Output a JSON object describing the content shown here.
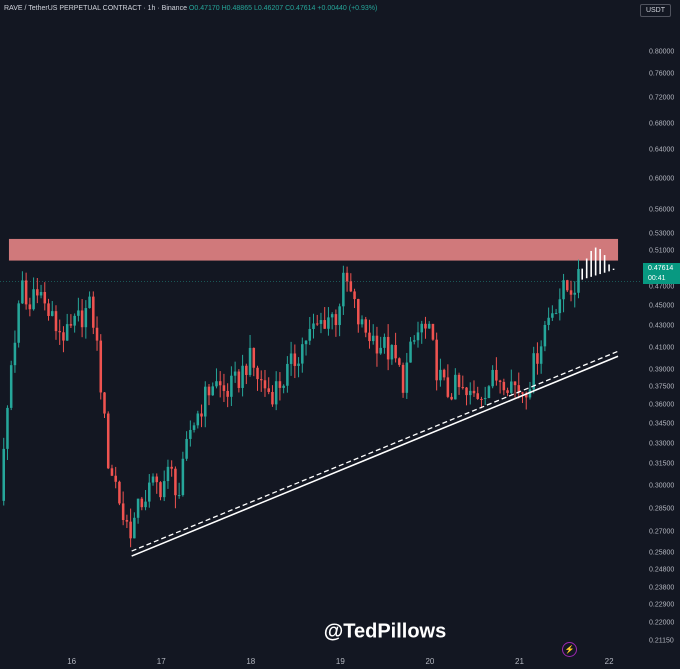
{
  "header": {
    "symbol": "RAVE / TetherUS PERPETUAL CONTRACT · 1h · Binance",
    "open": "O0.47170",
    "high": "H0.48865",
    "low": "L0.46207",
    "close": "C0.47614",
    "change": "+0.00440 (+0.93%)"
  },
  "currency_button": "USDT",
  "current_price": {
    "price": "0.47614",
    "countdown": "00:41"
  },
  "watermark": "@TedPillows",
  "colors": {
    "up": "#26a69a",
    "down": "#ef5350",
    "resistance": "#f28b8b",
    "background": "#131722"
  },
  "chart_data": {
    "type": "candlestick",
    "y_scale": "log",
    "ylim": [
      0.208,
      0.84
    ],
    "xlim": [
      15.2,
      22.2
    ],
    "y_ticks": [
      "0.80000",
      "0.76000",
      "0.72000",
      "0.68000",
      "0.64000",
      "0.60000",
      "0.56000",
      "0.53000",
      "0.51000",
      "0.49000",
      "0.47000",
      "0.45000",
      "0.43000",
      "0.41000",
      "0.39000",
      "0.37500",
      "0.36000",
      "0.34500",
      "0.33000",
      "0.31500",
      "0.30000",
      "0.28500",
      "0.27000",
      "0.25800",
      "0.24800",
      "0.23800",
      "0.22900",
      "0.22000",
      "0.21150"
    ],
    "x_ticks": [
      {
        "label": "16",
        "x": 16
      },
      {
        "label": "17",
        "x": 17
      },
      {
        "label": "18",
        "x": 18
      },
      {
        "label": "19",
        "x": 19
      },
      {
        "label": "20",
        "x": 20
      },
      {
        "label": "21",
        "x": 21
      },
      {
        "label": "22",
        "x": 22
      }
    ],
    "resistance_zone": {
      "x": [
        15.3,
        22.1
      ],
      "y": [
        0.499,
        0.524
      ]
    },
    "support_trendline": {
      "from": [
        16.67,
        0.256
      ],
      "to": [
        22.1,
        0.402
      ]
    },
    "projection_bars_count": 9,
    "anchors": [
      [
        15.2,
        0.29
      ],
      [
        15.33,
        0.4
      ],
      [
        15.45,
        0.47
      ],
      [
        15.52,
        0.44
      ],
      [
        15.6,
        0.48
      ],
      [
        15.7,
        0.45
      ],
      [
        15.82,
        0.43
      ],
      [
        15.95,
        0.42
      ],
      [
        16.1,
        0.44
      ],
      [
        16.22,
        0.45
      ],
      [
        16.3,
        0.4
      ],
      [
        16.4,
        0.32
      ],
      [
        16.5,
        0.3
      ],
      [
        16.58,
        0.278
      ],
      [
        16.67,
        0.272
      ],
      [
        16.78,
        0.29
      ],
      [
        16.9,
        0.3
      ],
      [
        17.0,
        0.3
      ],
      [
        17.1,
        0.31
      ],
      [
        17.2,
        0.295
      ],
      [
        17.32,
        0.34
      ],
      [
        17.45,
        0.36
      ],
      [
        17.58,
        0.38
      ],
      [
        17.72,
        0.37
      ],
      [
        17.85,
        0.38
      ],
      [
        17.98,
        0.4
      ],
      [
        18.1,
        0.38
      ],
      [
        18.22,
        0.37
      ],
      [
        18.35,
        0.38
      ],
      [
        18.5,
        0.4
      ],
      [
        18.62,
        0.42
      ],
      [
        18.75,
        0.43
      ],
      [
        18.85,
        0.44
      ],
      [
        18.95,
        0.44
      ],
      [
        19.05,
        0.48
      ],
      [
        19.12,
        0.46
      ],
      [
        19.22,
        0.43
      ],
      [
        19.35,
        0.42
      ],
      [
        19.5,
        0.41
      ],
      [
        19.6,
        0.4
      ],
      [
        19.7,
        0.38
      ],
      [
        19.8,
        0.41
      ],
      [
        19.9,
        0.43
      ],
      [
        20.0,
        0.42
      ],
      [
        20.08,
        0.39
      ],
      [
        20.18,
        0.37
      ],
      [
        20.3,
        0.375
      ],
      [
        20.42,
        0.365
      ],
      [
        20.55,
        0.37
      ],
      [
        20.68,
        0.38
      ],
      [
        20.8,
        0.385
      ],
      [
        20.92,
        0.378
      ],
      [
        21.02,
        0.372
      ],
      [
        21.1,
        0.378
      ],
      [
        21.18,
        0.4
      ],
      [
        21.28,
        0.43
      ],
      [
        21.38,
        0.45
      ],
      [
        21.48,
        0.465
      ],
      [
        21.58,
        0.47
      ],
      [
        21.65,
        0.476
      ]
    ]
  }
}
